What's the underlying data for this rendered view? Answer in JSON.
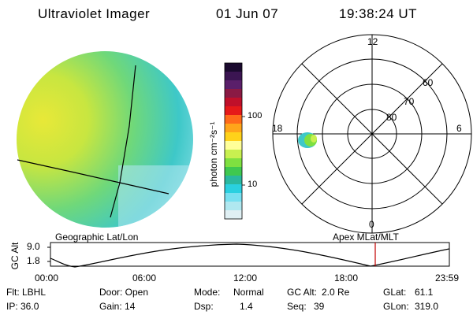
{
  "header": {
    "instrument": "Ultraviolet Imager",
    "date": "01 Jun 07",
    "time": "19:38:24 UT"
  },
  "colorbar": {
    "unit_label": "photon cm⁻²s⁻¹",
    "ticks": [
      "100",
      "10"
    ],
    "colors": [
      "#1a0a2e",
      "#3b1552",
      "#5a1f6a",
      "#8a1a44",
      "#c0102a",
      "#e61919",
      "#ff6a1a",
      "#ffa51a",
      "#ffd21a",
      "#ffff99",
      "#c8f050",
      "#7fe040",
      "#3fc850",
      "#2ab8a0",
      "#2ad0e0",
      "#78e0f0",
      "#b0e8f0",
      "#e0f0f4"
    ]
  },
  "polar_plot": {
    "mlt_labels": {
      "top": "12",
      "right": "6",
      "bottom": "0",
      "left": "18"
    },
    "lat_labels": [
      "60",
      "70",
      "80"
    ]
  },
  "timeline": {
    "title_left": "Geographic Lat/Lon",
    "title_right": "Apex  MLat/MLT",
    "ylabel": "GC Alt",
    "y_ticks": [
      "9.0",
      "1.8"
    ],
    "x_ticks": [
      "00:00",
      "06:00",
      "12:00",
      "18:00",
      "23:59"
    ],
    "current_marker": "19:38:24"
  },
  "status": {
    "filter": "Flt: LBHL",
    "door": "Door: Open",
    "mode_label": "Mode:",
    "mode_value": "Normal",
    "gc_alt_label": "GC Alt:",
    "gc_alt_value": "2.0 Re",
    "glat_label": "GLat:",
    "glat_value": "61.1",
    "ip": "IP: 36.0",
    "gain": "Gain: 14",
    "dsp_label": "Dsp:",
    "dsp_value": "1.4",
    "seq_label": "Seq:",
    "seq_value": "39",
    "glon_label": "GLon:",
    "glon_value": "319.0"
  }
}
